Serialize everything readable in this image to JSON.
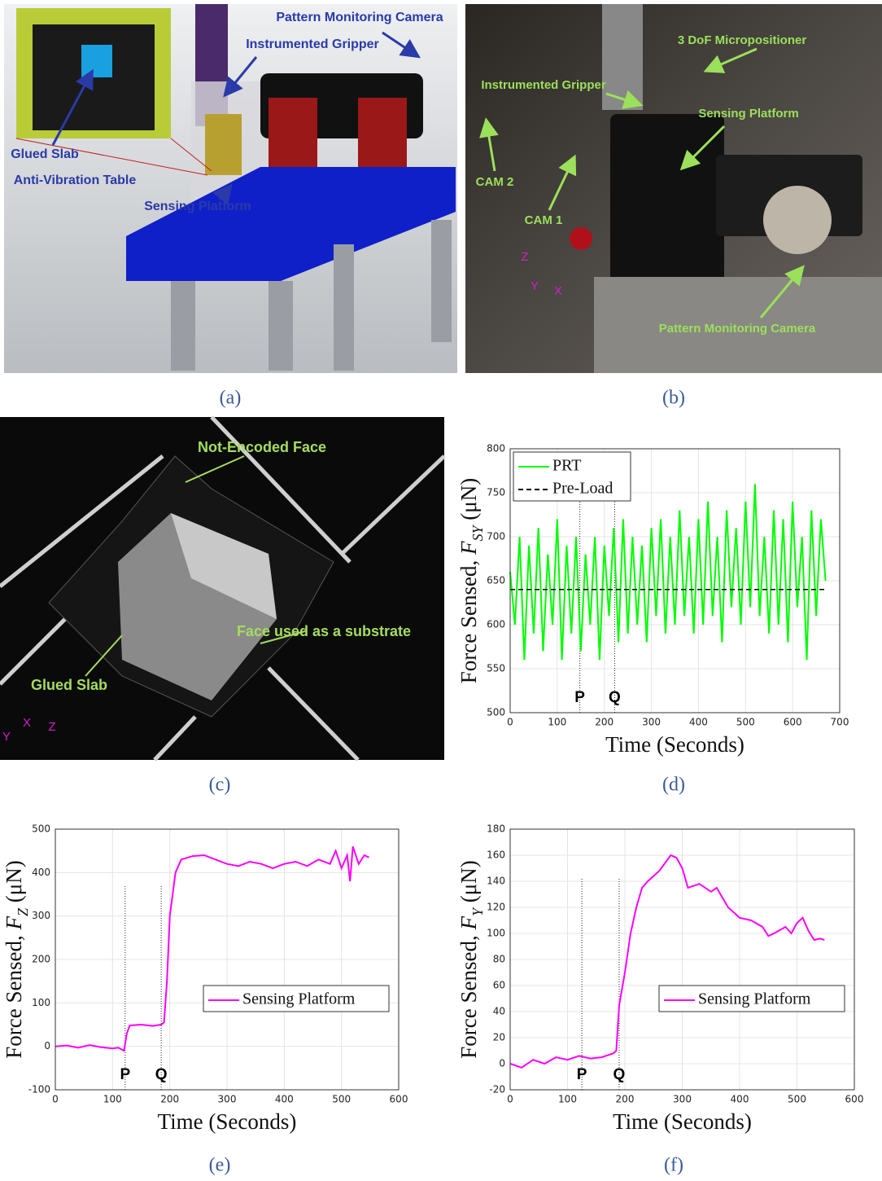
{
  "panels": [
    {
      "caption": "(a)",
      "labels": [
        "Pattern Monitoring Camera",
        "Instrumented Gripper",
        "Glued Slab",
        "Anti-Vibration Table",
        "Sensing Platform"
      ]
    },
    {
      "caption": "(b)",
      "labels": [
        "3 DoF Micropositioner",
        "Instrumented Gripper",
        "Sensing Platform",
        "CAM 2",
        "CAM 1",
        "Pattern Monitoring Camera",
        "Z",
        "Y",
        "X"
      ]
    },
    {
      "caption": "(c)",
      "labels": [
        "Not-Encoded Face",
        "Face used as a substrate",
        "Glued Slab",
        "Y",
        "X",
        "Z"
      ]
    }
  ],
  "chart_data": [
    {
      "type": "line",
      "caption": "(d)",
      "xlabel": "Time (Seconds)",
      "ylabel": [
        "Force Sensed, ",
        "F",
        "SY",
        " (μN)"
      ],
      "xlim": [
        0,
        700
      ],
      "ylim": [
        500,
        800
      ],
      "xticks": [
        0,
        100,
        200,
        300,
        400,
        500,
        600,
        700
      ],
      "yticks": [
        500,
        550,
        600,
        650,
        700,
        750,
        800
      ],
      "grid": true,
      "legend": "upper left",
      "series": [
        {
          "name": "PRT",
          "color": "#00ff00",
          "dash": false,
          "x": [
            0,
            10,
            20,
            30,
            40,
            50,
            60,
            70,
            80,
            90,
            100,
            110,
            120,
            130,
            140,
            150,
            160,
            170,
            180,
            190,
            200,
            210,
            220,
            230,
            240,
            250,
            260,
            270,
            280,
            290,
            300,
            310,
            320,
            330,
            340,
            350,
            360,
            370,
            380,
            390,
            400,
            410,
            420,
            430,
            440,
            450,
            460,
            470,
            480,
            490,
            500,
            510,
            520,
            530,
            540,
            550,
            560,
            570,
            580,
            590,
            600,
            610,
            620,
            630,
            640,
            650,
            660,
            670
          ],
          "values": [
            660,
            600,
            700,
            560,
            690,
            590,
            710,
            570,
            680,
            600,
            720,
            560,
            690,
            590,
            700,
            570,
            680,
            600,
            700,
            560,
            690,
            610,
            710,
            580,
            720,
            590,
            700,
            600,
            690,
            580,
            710,
            610,
            720,
            590,
            700,
            600,
            730,
            610,
            700,
            590,
            720,
            600,
            740,
            610,
            700,
            580,
            730,
            620,
            710,
            600,
            740,
            620,
            760,
            610,
            700,
            590,
            730,
            600,
            720,
            580,
            740,
            620,
            700,
            560,
            730,
            610,
            720,
            650
          ]
        },
        {
          "name": "Pre-Load",
          "color": "#000000",
          "dash": true,
          "x": [
            0,
            670
          ],
          "values": [
            640,
            640
          ]
        }
      ],
      "annotations": [
        {
          "text": "P",
          "x": 148,
          "y_top": 740
        },
        {
          "text": "Q",
          "x": 222,
          "y_top": 740
        }
      ]
    },
    {
      "type": "line",
      "caption": "(e)",
      "xlabel": "Time (Seconds)",
      "ylabel": [
        "Force Sensed, ",
        "F",
        "Z",
        " (μN)"
      ],
      "xlim": [
        0,
        600
      ],
      "ylim": [
        -100,
        500
      ],
      "xticks": [
        0,
        100,
        200,
        300,
        400,
        500,
        600
      ],
      "yticks": [
        -100,
        0,
        100,
        200,
        300,
        400,
        500
      ],
      "grid": true,
      "legend": "center right",
      "series": [
        {
          "name": "Sensing Platform",
          "color": "#ff00ff",
          "dash": false,
          "x": [
            0,
            20,
            40,
            60,
            80,
            100,
            110,
            120,
            125,
            130,
            150,
            170,
            185,
            190,
            195,
            200,
            210,
            220,
            240,
            260,
            280,
            300,
            320,
            340,
            360,
            380,
            400,
            420,
            440,
            460,
            480,
            490,
            500,
            510,
            515,
            520,
            530,
            540,
            548
          ],
          "values": [
            0,
            2,
            -3,
            3,
            -2,
            -5,
            -3,
            -10,
            30,
            48,
            50,
            47,
            50,
            55,
            150,
            300,
            400,
            430,
            438,
            440,
            430,
            420,
            415,
            425,
            420,
            410,
            420,
            425,
            415,
            430,
            420,
            450,
            410,
            440,
            380,
            460,
            420,
            440,
            435
          ]
        }
      ],
      "annotations": [
        {
          "text": "P",
          "x": 122,
          "y_top": 370
        },
        {
          "text": "Q",
          "x": 185,
          "y_top": 370
        }
      ]
    },
    {
      "type": "line",
      "caption": "(f)",
      "xlabel": "Time (Seconds)",
      "ylabel": [
        "Force Sensed, ",
        "F",
        "Y",
        " (μN)"
      ],
      "xlim": [
        0,
        600
      ],
      "ylim": [
        -20,
        180
      ],
      "xticks": [
        0,
        100,
        200,
        300,
        400,
        500,
        600
      ],
      "yticks": [
        -20,
        0,
        20,
        40,
        60,
        80,
        100,
        120,
        140,
        160,
        180
      ],
      "grid": true,
      "legend": "center right",
      "series": [
        {
          "name": "Sensing Platform",
          "color": "#ff00ff",
          "dash": false,
          "x": [
            0,
            20,
            40,
            60,
            80,
            100,
            120,
            140,
            160,
            180,
            185,
            190,
            200,
            210,
            220,
            230,
            240,
            260,
            280,
            290,
            300,
            310,
            330,
            350,
            360,
            380,
            400,
            420,
            440,
            450,
            460,
            480,
            490,
            500,
            510,
            520,
            530,
            540,
            548
          ],
          "values": [
            0,
            -3,
            3,
            0,
            5,
            3,
            6,
            4,
            5,
            8,
            10,
            45,
            70,
            100,
            120,
            135,
            140,
            148,
            160,
            158,
            150,
            135,
            138,
            132,
            135,
            120,
            112,
            110,
            105,
            98,
            100,
            105,
            100,
            108,
            112,
            102,
            95,
            96,
            95
          ]
        }
      ],
      "annotations": [
        {
          "text": "P",
          "x": 125,
          "y_top": 143
        },
        {
          "text": "Q",
          "x": 190,
          "y_top": 143
        }
      ]
    }
  ]
}
